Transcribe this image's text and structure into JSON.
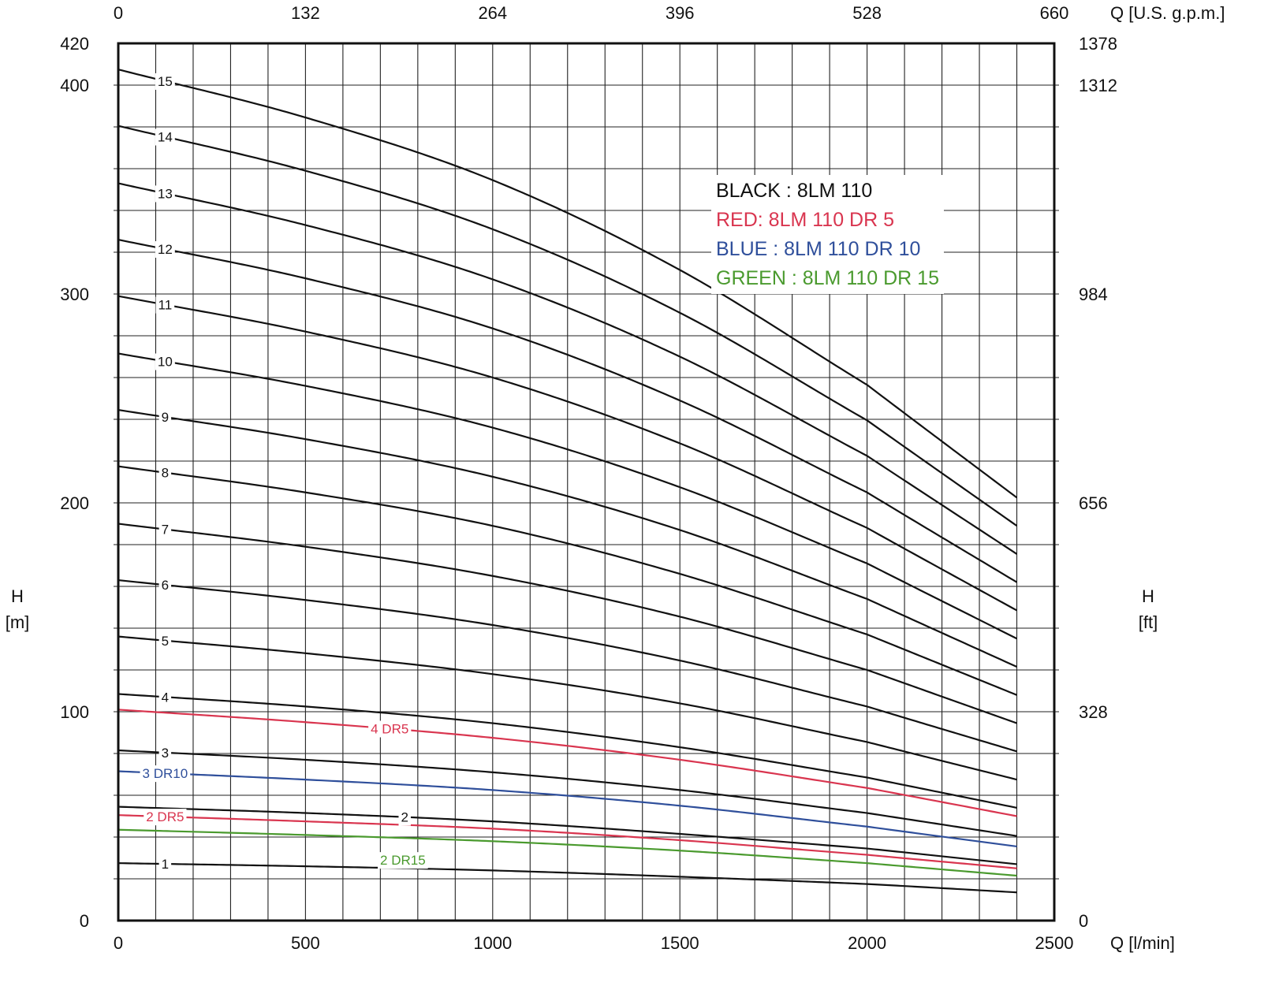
{
  "chart_data": {
    "type": "line",
    "title": "",
    "x_bottom": {
      "label": "Q [l/min]",
      "range": [
        0,
        2500
      ],
      "ticks": [
        "0",
        "500",
        "1000",
        "1500",
        "2000",
        "2500"
      ],
      "tick_values": [
        0,
        500,
        1000,
        1500,
        2000,
        2500
      ]
    },
    "x_top": {
      "label": "Q [U.S. g.p.m.]",
      "ticks": [
        "0",
        "132",
        "264",
        "396",
        "528",
        "660"
      ],
      "tick_values": [
        0,
        500,
        1000,
        1500,
        2000,
        2500
      ]
    },
    "y_left": {
      "label_main": "H",
      "label_unit": "[m]",
      "range": [
        0,
        420
      ],
      "ticks": [
        "0",
        "100",
        "200",
        "300",
        "400",
        "420"
      ],
      "tick_values": [
        0,
        100,
        200,
        300,
        400,
        420
      ]
    },
    "y_right": {
      "label_main": "H",
      "label_unit": "[ft]",
      "ticks": [
        "0",
        "328",
        "656",
        "984",
        "1312",
        "1378"
      ],
      "tick_values": [
        0,
        100,
        200,
        300,
        400,
        420
      ]
    },
    "grid": true,
    "x_grid_step": 100,
    "y_grid_step": 20,
    "legend": {
      "placement": "top-right",
      "entries": [
        {
          "text": "BLACK : 8LM 110",
          "color": "#111111"
        },
        {
          "text": "RED: 8LM 110 DR 5",
          "color": "#d9354f"
        },
        {
          "text": "BLUE : 8LM 110 DR 10",
          "color": "#2f4f9b"
        },
        {
          "text": "GREEN : 8LM 110 DR 15",
          "color": "#4a9a2e"
        }
      ]
    },
    "series": [
      {
        "name": "1",
        "color": "#111111",
        "x": [
          0,
          500,
          1000,
          1500,
          2000,
          2400
        ],
        "y": [
          27.5,
          26,
          24,
          21,
          17.5,
          13.5
        ],
        "label_x": 125
      },
      {
        "name": "2",
        "color": "#111111",
        "x": [
          0,
          500,
          1000,
          1500,
          2000,
          2400
        ],
        "y": [
          54.5,
          51.5,
          47.5,
          41.5,
          34.5,
          27
        ],
        "label_x": 765
      },
      {
        "name": "3",
        "color": "#111111",
        "x": [
          0,
          500,
          1000,
          1500,
          2000,
          2400
        ],
        "y": [
          81.5,
          77,
          71,
          62.5,
          51.5,
          40.5
        ],
        "label_x": 125
      },
      {
        "name": "4",
        "color": "#111111",
        "x": [
          0,
          500,
          1000,
          1500,
          2000,
          2400
        ],
        "y": [
          108.5,
          102.5,
          94.5,
          83,
          68.5,
          54
        ],
        "label_x": 125
      },
      {
        "name": "5",
        "color": "#111111",
        "x": [
          0,
          500,
          1000,
          1500,
          2000,
          2400
        ],
        "y": [
          136,
          128,
          118,
          104,
          85.5,
          67.5
        ],
        "label_x": 125
      },
      {
        "name": "6",
        "color": "#111111",
        "x": [
          0,
          500,
          1000,
          1500,
          2000,
          2400
        ],
        "y": [
          163,
          153.5,
          141.5,
          124.5,
          102.5,
          81
        ],
        "label_x": 125
      },
      {
        "name": "7",
        "color": "#111111",
        "x": [
          0,
          500,
          1000,
          1500,
          2000,
          2400
        ],
        "y": [
          190,
          179,
          165,
          145.5,
          120,
          94.5
        ],
        "label_x": 125
      },
      {
        "name": "8",
        "color": "#111111",
        "x": [
          0,
          500,
          1000,
          1500,
          2000,
          2400
        ],
        "y": [
          217.5,
          205,
          189,
          166,
          137,
          108
        ],
        "label_x": 125
      },
      {
        "name": "9",
        "color": "#111111",
        "x": [
          0,
          500,
          1000,
          1500,
          2000,
          2400
        ],
        "y": [
          244.5,
          230.5,
          212.5,
          187,
          154,
          121.5
        ],
        "label_x": 125
      },
      {
        "name": "10",
        "color": "#111111",
        "x": [
          0,
          500,
          1000,
          1500,
          2000,
          2400
        ],
        "y": [
          271.5,
          256,
          236,
          207.5,
          171,
          135
        ],
        "label_x": 125
      },
      {
        "name": "11",
        "color": "#111111",
        "x": [
          0,
          500,
          1000,
          1500,
          2000,
          2400
        ],
        "y": [
          299,
          282,
          260,
          228.5,
          188,
          148.5
        ],
        "label_x": 125
      },
      {
        "name": "12",
        "color": "#111111",
        "x": [
          0,
          500,
          1000,
          1500,
          2000,
          2400
        ],
        "y": [
          326,
          307.5,
          283.5,
          249,
          205,
          162
        ],
        "label_x": 125
      },
      {
        "name": "13",
        "color": "#111111",
        "x": [
          0,
          500,
          1000,
          1500,
          2000,
          2400
        ],
        "y": [
          353,
          333,
          307,
          270,
          222.5,
          175.5
        ],
        "label_x": 125
      },
      {
        "name": "14",
        "color": "#111111",
        "x": [
          0,
          500,
          1000,
          1500,
          2000,
          2400
        ],
        "y": [
          380.5,
          359,
          331,
          291,
          239.5,
          189
        ],
        "label_x": 125
      },
      {
        "name": "15",
        "color": "#111111",
        "x": [
          0,
          500,
          1000,
          1500,
          2000,
          2400
        ],
        "y": [
          407.5,
          384.5,
          354.5,
          311.5,
          256.5,
          202.5
        ],
        "label_x": 125
      },
      {
        "name": "4 DR5",
        "color": "#d9354f",
        "x": [
          0,
          500,
          1000,
          1500,
          2000,
          2400
        ],
        "y": [
          101,
          95,
          87.5,
          77,
          63.5,
          50
        ],
        "label_x": 725
      },
      {
        "name": "2 DR5",
        "color": "#d9354f",
        "x": [
          0,
          500,
          1000,
          1500,
          2000,
          2400
        ],
        "y": [
          50.5,
          47.5,
          44,
          38.5,
          31.5,
          25
        ],
        "label_x": 125
      },
      {
        "name": "3 DR10",
        "color": "#2f4f9b",
        "x": [
          0,
          500,
          1000,
          1500,
          2000,
          2400
        ],
        "y": [
          71.5,
          67.5,
          62.5,
          55,
          45,
          35.5
        ],
        "label_x": 125
      },
      {
        "name": "2 DR15",
        "color": "#4a9a2e",
        "x": [
          0,
          500,
          1000,
          1500,
          2000,
          2400
        ],
        "y": [
          43.5,
          41,
          38,
          33.5,
          27.5,
          21.5
        ],
        "label_x": 760,
        "label_dy": 28
      }
    ]
  }
}
